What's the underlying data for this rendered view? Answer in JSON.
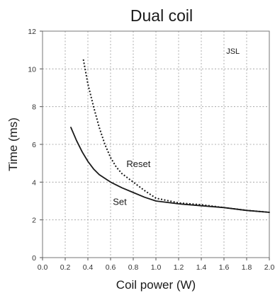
{
  "chart_data": {
    "type": "line",
    "title": "Dual coil",
    "xlabel": "Coil power (W)",
    "ylabel": "Time (ms)",
    "xlim": [
      0,
      2.0
    ],
    "ylim": [
      0,
      12
    ],
    "x_ticks": [
      "0.0",
      "0.2",
      "0.4",
      "0.6",
      "0.8",
      "1.0",
      "1.2",
      "1.4",
      "1.6",
      "1.8",
      "2.0"
    ],
    "y_ticks": [
      "0",
      "2",
      "4",
      "6",
      "8",
      "10",
      "12"
    ],
    "grid": true,
    "series": [
      {
        "name": "Set",
        "style": "solid",
        "color": "#1a1a1a",
        "x": [
          0.25,
          0.3,
          0.35,
          0.4,
          0.45,
          0.5,
          0.6,
          0.7,
          0.8,
          0.9,
          1.0,
          1.2,
          1.4,
          1.6,
          1.8,
          2.0
        ],
        "y": [
          6.9,
          6.2,
          5.6,
          5.1,
          4.7,
          4.4,
          4.0,
          3.7,
          3.45,
          3.2,
          3.0,
          2.85,
          2.75,
          2.65,
          2.5,
          2.4
        ]
      },
      {
        "name": "Reset",
        "style": "dotted",
        "color": "#1a1a1a",
        "x": [
          0.36,
          0.4,
          0.45,
          0.5,
          0.55,
          0.6,
          0.65,
          0.7,
          0.8,
          0.9,
          1.0,
          1.2,
          1.4,
          1.6,
          1.8,
          2.0
        ],
        "y": [
          10.5,
          9.2,
          8.0,
          6.9,
          6.0,
          5.3,
          4.8,
          4.45,
          4.0,
          3.55,
          3.15,
          2.9,
          2.8,
          2.65,
          2.5,
          2.4
        ]
      }
    ],
    "annotations": [
      {
        "text": "Reset",
        "x": 0.74,
        "y": 4.8
      },
      {
        "text": "Set",
        "x": 0.62,
        "y": 2.8
      },
      {
        "text": "JSL",
        "x": 1.62,
        "y": 10.8
      }
    ]
  }
}
